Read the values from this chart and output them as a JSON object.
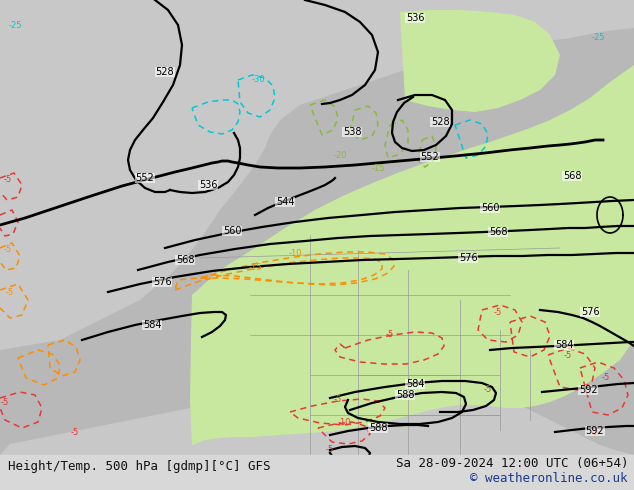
{
  "title_left": "Height/Temp. 500 hPa [gdmp][°C] GFS",
  "title_right": "Sa 28-09-2024 12:00 UTC (06+54)",
  "copyright": "© weatheronline.co.uk",
  "bg_color": "#c8c8c8",
  "ocean_color": "#c8c8c8",
  "land_color": "#b8b8b8",
  "green_fill_color": "#c8e8a0",
  "bottom_bar_color": "#d8d8d8",
  "text_color": "#111111",
  "copyright_color": "#1a3a8f",
  "font_size_bottom": 9,
  "font_size_copyright": 9,
  "contour_lw": 1.6,
  "temp_lw": 1.1
}
